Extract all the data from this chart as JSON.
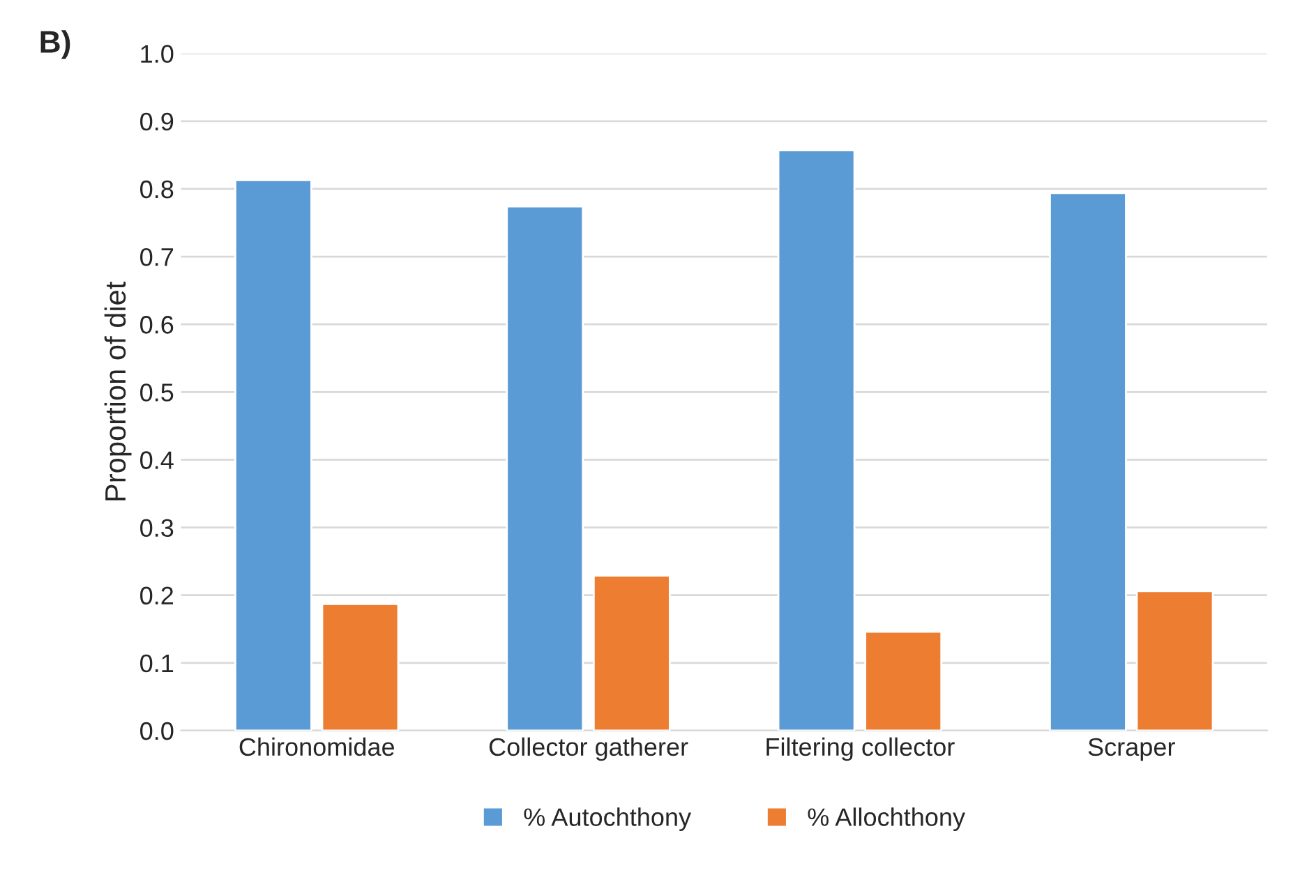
{
  "chart_data": {
    "type": "bar",
    "ylabel": "Proportion of diet",
    "annotations": [
      "B)"
    ],
    "categories": [
      "Chironomidae",
      "Collector gatherer",
      "Filtering collector",
      "Scraper"
    ],
    "series": [
      {
        "name": "% Autochthony",
        "color": "#5b9bd5",
        "values": [
          0.813,
          0.774,
          0.857,
          0.794
        ]
      },
      {
        "name": "% Allochthony",
        "color": "#ed7d31",
        "values": [
          0.187,
          0.229,
          0.146,
          0.206
        ]
      }
    ],
    "ylim": [
      0,
      1
    ],
    "yticks": [
      {
        "value": 0,
        "label": "0.0"
      },
      {
        "value": 0.1,
        "label": "0.1"
      },
      {
        "value": 0.2,
        "label": "0.2"
      },
      {
        "value": 0.3,
        "label": "0.3"
      },
      {
        "value": 0.4,
        "label": "0.4"
      },
      {
        "value": 0.5,
        "label": "0.5"
      },
      {
        "value": 0.6,
        "label": "0.6"
      },
      {
        "value": 0.7,
        "label": "0.7"
      },
      {
        "value": 0.8,
        "label": "0.8"
      },
      {
        "value": 0.9,
        "label": "0.9"
      },
      {
        "value": 1,
        "label": "1.0"
      }
    ],
    "grid": "y",
    "legend": "bottom"
  }
}
